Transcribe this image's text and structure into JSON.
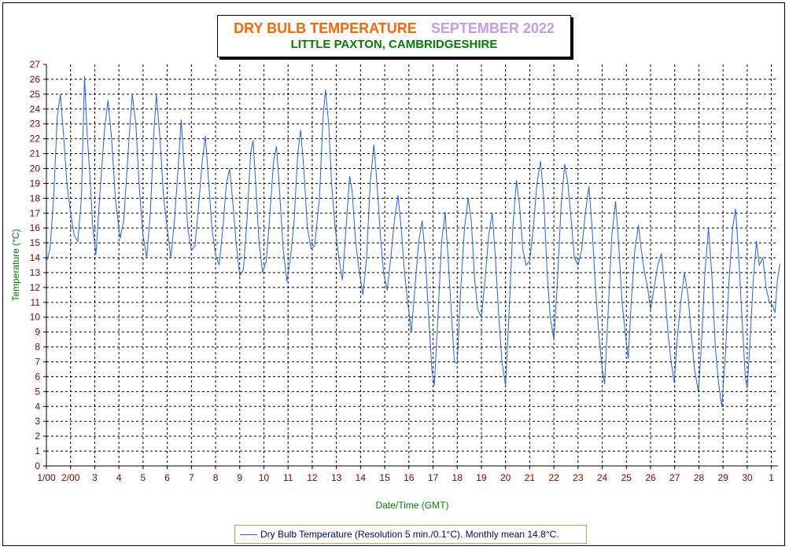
{
  "title": {
    "main": "DRY BULB TEMPERATURE",
    "month": "SEPTEMBER 2022",
    "location": "LITTLE PAXTON, CAMBRIDGESHIRE"
  },
  "legend": {
    "label": "Dry Bulb Temperature (Resolution 5 min./0.1°C). Monthly mean 14.8°C."
  },
  "colors": {
    "title_main": "#ff6600",
    "title_month": "#c39bf0",
    "location": "#008000",
    "axis_labels": "#008000",
    "tick_labels": "#800000",
    "series_line": "#1f5fff"
  },
  "chart_data": {
    "type": "line",
    "title": "DRY BULB TEMPERATURE SEPTEMBER 2022",
    "subtitle": "LITTLE PAXTON, CAMBRIDGESHIRE",
    "xlabel": "Date/Time (GMT)",
    "ylabel": "Temperature (°C)",
    "ylim": [
      0,
      27
    ],
    "xlim": [
      1,
      31.4
    ],
    "grid": true,
    "legend_position": "bottom",
    "x_tick_labels": [
      "1/00",
      "2/00",
      "3",
      "4",
      "5",
      "6",
      "7",
      "8",
      "9",
      "10",
      "11",
      "12",
      "13",
      "14",
      "15",
      "16",
      "17",
      "18",
      "19",
      "20",
      "21",
      "22",
      "23",
      "24",
      "25",
      "26",
      "27",
      "28",
      "29",
      "30",
      "1"
    ],
    "y_ticks": [
      0,
      1,
      2,
      3,
      4,
      5,
      6,
      7,
      8,
      9,
      10,
      11,
      12,
      13,
      14,
      15,
      16,
      17,
      18,
      19,
      20,
      21,
      22,
      23,
      24,
      25,
      26,
      27
    ],
    "series": [
      {
        "name": "Dry Bulb Temperature (Resolution 5 min./0.1°C). Monthly mean 14.8°C.",
        "points": [
          [
            1.0,
            13.7
          ],
          [
            1.15,
            14.6
          ],
          [
            1.3,
            18.0
          ],
          [
            1.45,
            23.5
          ],
          [
            1.58,
            25.0
          ],
          [
            1.7,
            22.5
          ],
          [
            1.85,
            19.0
          ],
          [
            2.0,
            17.0
          ],
          [
            2.15,
            15.5
          ],
          [
            2.3,
            15.1
          ],
          [
            2.45,
            18.0
          ],
          [
            2.58,
            26.2
          ],
          [
            2.68,
            22.5
          ],
          [
            2.8,
            19.5
          ],
          [
            2.92,
            16.0
          ],
          [
            3.05,
            14.2
          ],
          [
            3.2,
            18.0
          ],
          [
            3.4,
            22.5
          ],
          [
            3.55,
            24.6
          ],
          [
            3.7,
            22.0
          ],
          [
            3.85,
            18.0
          ],
          [
            4.05,
            15.3
          ],
          [
            4.2,
            16.5
          ],
          [
            4.4,
            21.5
          ],
          [
            4.55,
            25.0
          ],
          [
            4.7,
            23.0
          ],
          [
            4.85,
            18.5
          ],
          [
            5.0,
            15.5
          ],
          [
            5.15,
            14.0
          ],
          [
            5.3,
            17.0
          ],
          [
            5.45,
            22.5
          ],
          [
            5.55,
            25.0
          ],
          [
            5.7,
            22.0
          ],
          [
            5.85,
            18.0
          ],
          [
            6.0,
            16.0
          ],
          [
            6.15,
            14.0
          ],
          [
            6.3,
            16.5
          ],
          [
            6.45,
            20.0
          ],
          [
            6.58,
            23.3
          ],
          [
            6.72,
            19.5
          ],
          [
            6.85,
            16.0
          ],
          [
            7.0,
            14.5
          ],
          [
            7.15,
            14.8
          ],
          [
            7.3,
            17.5
          ],
          [
            7.45,
            20.5
          ],
          [
            7.58,
            22.2
          ],
          [
            7.72,
            19.0
          ],
          [
            7.85,
            16.0
          ],
          [
            8.0,
            14.2
          ],
          [
            8.15,
            13.5
          ],
          [
            8.3,
            16.0
          ],
          [
            8.45,
            19.0
          ],
          [
            8.58,
            20.0
          ],
          [
            8.7,
            18.0
          ],
          [
            8.85,
            15.0
          ],
          [
            9.0,
            12.8
          ],
          [
            9.15,
            13.2
          ],
          [
            9.3,
            16.5
          ],
          [
            9.45,
            21.0
          ],
          [
            9.55,
            21.9
          ],
          [
            9.68,
            18.5
          ],
          [
            9.8,
            15.0
          ],
          [
            9.95,
            13.0
          ],
          [
            10.1,
            13.8
          ],
          [
            10.25,
            17.0
          ],
          [
            10.4,
            20.5
          ],
          [
            10.52,
            21.5
          ],
          [
            10.65,
            18.5
          ],
          [
            10.8,
            14.5
          ],
          [
            10.95,
            12.4
          ],
          [
            11.1,
            14.0
          ],
          [
            11.25,
            16.5
          ],
          [
            11.4,
            21.0
          ],
          [
            11.52,
            22.6
          ],
          [
            11.65,
            20.0
          ],
          [
            11.8,
            16.0
          ],
          [
            11.95,
            14.6
          ],
          [
            12.1,
            14.8
          ],
          [
            12.3,
            18.0
          ],
          [
            12.45,
            23.5
          ],
          [
            12.55,
            25.3
          ],
          [
            12.68,
            23.0
          ],
          [
            12.8,
            19.0
          ],
          [
            12.95,
            16.0
          ],
          [
            13.1,
            14.0
          ],
          [
            13.25,
            12.5
          ],
          [
            13.4,
            16.0
          ],
          [
            13.55,
            19.5
          ],
          [
            13.65,
            18.5
          ],
          [
            13.8,
            15.0
          ],
          [
            13.95,
            13.0
          ],
          [
            14.1,
            11.5
          ],
          [
            14.25,
            14.0
          ],
          [
            14.4,
            19.0
          ],
          [
            14.55,
            21.6
          ],
          [
            14.68,
            19.0
          ],
          [
            14.82,
            15.5
          ],
          [
            14.95,
            13.0
          ],
          [
            15.1,
            11.8
          ],
          [
            15.25,
            14.0
          ],
          [
            15.4,
            16.5
          ],
          [
            15.55,
            18.2
          ],
          [
            15.68,
            16.0
          ],
          [
            15.82,
            13.0
          ],
          [
            15.95,
            11.0
          ],
          [
            16.1,
            9.0
          ],
          [
            16.25,
            12.0
          ],
          [
            16.4,
            15.0
          ],
          [
            16.55,
            16.5
          ],
          [
            16.68,
            14.0
          ],
          [
            16.82,
            10.0
          ],
          [
            16.95,
            6.5
          ],
          [
            17.05,
            5.4
          ],
          [
            17.2,
            10.0
          ],
          [
            17.35,
            15.0
          ],
          [
            17.5,
            17.1
          ],
          [
            17.62,
            14.0
          ],
          [
            17.75,
            10.5
          ],
          [
            17.88,
            7.0
          ],
          [
            18.0,
            6.9
          ],
          [
            18.15,
            12.0
          ],
          [
            18.3,
            16.0
          ],
          [
            18.45,
            18.0
          ],
          [
            18.58,
            16.5
          ],
          [
            18.72,
            12.5
          ],
          [
            18.85,
            10.5
          ],
          [
            19.0,
            10.0
          ],
          [
            19.15,
            12.5
          ],
          [
            19.3,
            15.5
          ],
          [
            19.45,
            17.0
          ],
          [
            19.58,
            14.0
          ],
          [
            19.72,
            10.0
          ],
          [
            19.85,
            7.0
          ],
          [
            20.0,
            5.4
          ],
          [
            20.15,
            10.5
          ],
          [
            20.3,
            16.0
          ],
          [
            20.45,
            19.2
          ],
          [
            20.58,
            17.5
          ],
          [
            20.72,
            14.5
          ],
          [
            20.85,
            13.5
          ],
          [
            21.0,
            13.8
          ],
          [
            21.15,
            16.0
          ],
          [
            21.3,
            19.0
          ],
          [
            21.45,
            20.5
          ],
          [
            21.58,
            18.0
          ],
          [
            21.72,
            13.0
          ],
          [
            21.85,
            10.0
          ],
          [
            22.0,
            8.5
          ],
          [
            22.15,
            12.5
          ],
          [
            22.3,
            17.5
          ],
          [
            22.45,
            20.3
          ],
          [
            22.58,
            19.0
          ],
          [
            22.72,
            16.5
          ],
          [
            22.85,
            14.0
          ],
          [
            23.0,
            13.5
          ],
          [
            23.15,
            14.5
          ],
          [
            23.3,
            17.0
          ],
          [
            23.45,
            18.8
          ],
          [
            23.58,
            16.0
          ],
          [
            23.72,
            12.0
          ],
          [
            23.85,
            9.0
          ],
          [
            24.0,
            6.5
          ],
          [
            24.1,
            5.5
          ],
          [
            24.25,
            10.5
          ],
          [
            24.4,
            15.5
          ],
          [
            24.55,
            17.8
          ],
          [
            24.68,
            15.0
          ],
          [
            24.82,
            11.0
          ],
          [
            24.95,
            9.0
          ],
          [
            25.08,
            7.2
          ],
          [
            25.2,
            11.0
          ],
          [
            25.35,
            14.5
          ],
          [
            25.5,
            16.2
          ],
          [
            25.62,
            14.5
          ],
          [
            25.75,
            13.0
          ],
          [
            25.88,
            12.0
          ],
          [
            26.0,
            10.5
          ],
          [
            26.15,
            12.0
          ],
          [
            26.3,
            13.5
          ],
          [
            26.45,
            14.3
          ],
          [
            26.58,
            12.0
          ],
          [
            26.72,
            9.0
          ],
          [
            26.85,
            7.0
          ],
          [
            26.98,
            5.6
          ],
          [
            27.1,
            8.5
          ],
          [
            27.25,
            11.0
          ],
          [
            27.4,
            13.0
          ],
          [
            27.55,
            11.5
          ],
          [
            27.68,
            9.0
          ],
          [
            27.82,
            6.5
          ],
          [
            27.98,
            5.0
          ],
          [
            28.1,
            8.0
          ],
          [
            28.25,
            13.0
          ],
          [
            28.4,
            16.0
          ],
          [
            28.55,
            12.5
          ],
          [
            28.68,
            8.0
          ],
          [
            28.82,
            5.5
          ],
          [
            28.95,
            4.0
          ],
          [
            29.1,
            7.5
          ],
          [
            29.25,
            12.5
          ],
          [
            29.4,
            16.0
          ],
          [
            29.52,
            17.3
          ],
          [
            29.65,
            14.0
          ],
          [
            29.8,
            9.5
          ],
          [
            29.92,
            6.0
          ],
          [
            30.0,
            5.2
          ],
          [
            30.12,
            8.5
          ],
          [
            30.25,
            12.5
          ],
          [
            30.38,
            15.1
          ],
          [
            30.5,
            13.5
          ],
          [
            30.65,
            14.0
          ],
          [
            30.78,
            12.0
          ],
          [
            30.92,
            11.0
          ],
          [
            31.05,
            10.8
          ],
          [
            31.15,
            10.3
          ],
          [
            31.25,
            12.5
          ],
          [
            31.35,
            13.6
          ]
        ]
      }
    ]
  }
}
